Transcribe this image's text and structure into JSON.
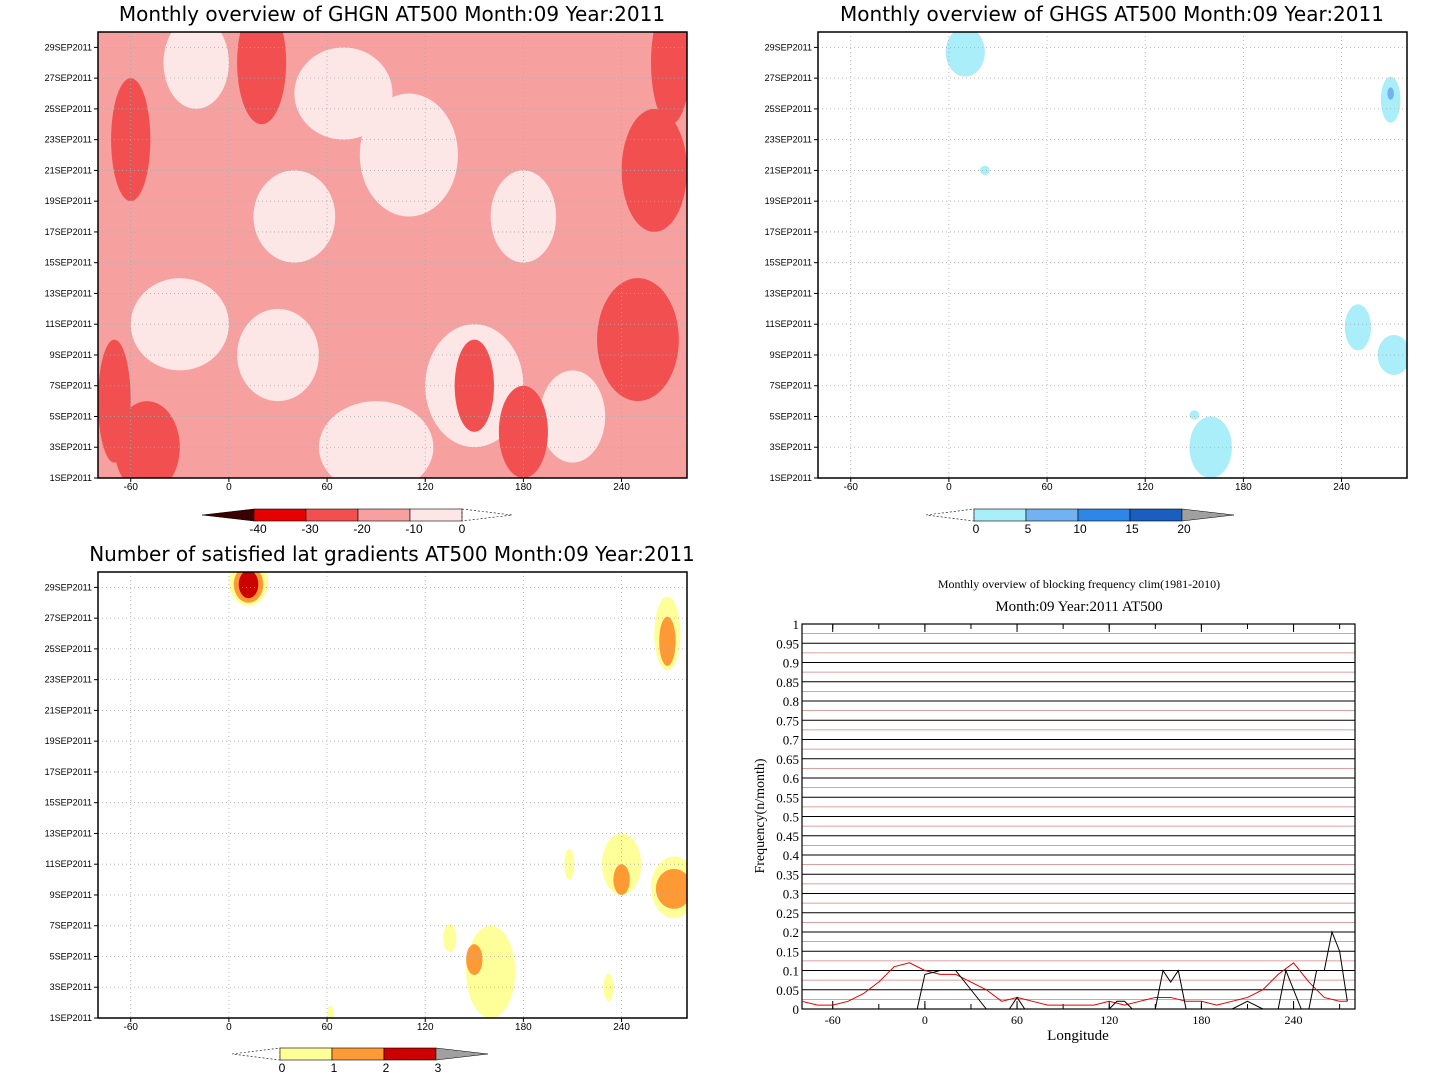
{
  "chart_data": [
    {
      "type": "heatmap",
      "title": "Monthly overview of GHGN AT500 Month:09 Year:2011",
      "x_ticks": [
        -60,
        0,
        60,
        120,
        180,
        240
      ],
      "x_range": [
        -80,
        280
      ],
      "y_ticks": [
        "1SEP2011",
        "3SEP2011",
        "5SEP2011",
        "7SEP2011",
        "9SEP2011",
        "11SEP2011",
        "13SEP2011",
        "15SEP2011",
        "17SEP2011",
        "19SEP2011",
        "21SEP2011",
        "23SEP2011",
        "25SEP2011",
        "27SEP2011",
        "29SEP2011"
      ],
      "y_range": [
        1,
        30
      ],
      "colorbar": {
        "labels": [
          "-40",
          "-30",
          "-20",
          "-10",
          "0"
        ],
        "colors": [
          "#6b0000",
          "#e60000",
          "#f25050",
          "#f7a0a0",
          "#fde6e6"
        ],
        "extend_low_color": "#3a0000"
      },
      "regions": [
        {
          "level": "-20",
          "color": "#f7a0a0",
          "blobs": [
            [
              -50,
              26,
              25,
              5
            ],
            [
              20,
              20,
              35,
              4
            ],
            [
              100,
              24,
              50,
              4
            ],
            [
              160,
              14,
              40,
              4
            ],
            [
              -40,
              5,
              40,
              4
            ],
            [
              60,
              8,
              40,
              3
            ],
            [
              200,
              24,
              30,
              4
            ],
            [
              250,
              17,
              20,
              4
            ],
            [
              -30,
              14,
              35,
              3
            ],
            [
              120,
              11,
              40,
              3
            ]
          ]
        },
        {
          "level": "-10",
          "color": "#fde6e6",
          "blobs": [
            [
              -20,
              28,
              20,
              3
            ],
            [
              70,
              26,
              30,
              3
            ],
            [
              40,
              18,
              25,
              3
            ],
            [
              110,
              22,
              30,
              4
            ],
            [
              180,
              18,
              20,
              3
            ],
            [
              -30,
              11,
              30,
              3
            ],
            [
              30,
              9,
              25,
              3
            ],
            [
              150,
              7,
              30,
              4
            ],
            [
              90,
              3,
              35,
              3
            ],
            [
              210,
              5,
              20,
              3
            ]
          ]
        },
        {
          "level": "-30",
          "color": "#f25050",
          "blobs": [
            [
              -60,
              23,
              12,
              4
            ],
            [
              20,
              28,
              15,
              4
            ],
            [
              260,
              21,
              20,
              4
            ],
            [
              -70,
              6,
              10,
              4
            ],
            [
              -50,
              3,
              20,
              3
            ],
            [
              150,
              7,
              12,
              3
            ],
            [
              250,
              10,
              25,
              4
            ],
            [
              270,
              28,
              12,
              4
            ],
            [
              180,
              4,
              15,
              3
            ]
          ]
        }
      ]
    },
    {
      "type": "heatmap",
      "title": "Monthly overview of GHGS AT500 Month:09 Year:2011",
      "x_ticks": [
        -60,
        0,
        60,
        120,
        180,
        240
      ],
      "x_range": [
        -80,
        280
      ],
      "y_ticks": [
        "1SEP2011",
        "3SEP2011",
        "5SEP2011",
        "7SEP2011",
        "9SEP2011",
        "11SEP2011",
        "13SEP2011",
        "15SEP2011",
        "17SEP2011",
        "19SEP2011",
        "21SEP2011",
        "23SEP2011",
        "25SEP2011",
        "27SEP2011",
        "29SEP2011"
      ],
      "y_range": [
        1,
        30
      ],
      "colorbar": {
        "labels": [
          "0",
          "5",
          "10",
          "15",
          "20"
        ],
        "colors": [
          "#aaeefa",
          "#73b2f0",
          "#2e87e8",
          "#1a5fc0"
        ],
        "extend_high_color": "#a0a0a0"
      },
      "regions": [
        {
          "level": "5",
          "color": "#aaeefa",
          "blobs": [
            [
              10,
              28.7,
              12,
              1.6
            ],
            [
              22,
              21,
              3,
              0.3
            ],
            [
              270,
              25.6,
              6,
              1.5
            ],
            [
              250,
              10.8,
              8,
              1.5
            ],
            [
              272,
              9,
              10,
              1.3
            ],
            [
              160,
              3,
              13,
              2
            ],
            [
              150,
              5.1,
              3,
              0.3
            ]
          ]
        },
        {
          "level": "10",
          "color": "#73b2f0",
          "blobs": [
            [
              270,
              26,
              2,
              0.4
            ]
          ]
        }
      ]
    },
    {
      "type": "heatmap",
      "title": "Number of satisfied lat gradients AT500 Month:09 Year:2011",
      "x_ticks": [
        -60,
        0,
        60,
        120,
        180,
        240
      ],
      "x_range": [
        -80,
        280
      ],
      "y_ticks": [
        "1SEP2011",
        "3SEP2011",
        "5SEP2011",
        "7SEP2011",
        "9SEP2011",
        "11SEP2011",
        "13SEP2011",
        "15SEP2011",
        "17SEP2011",
        "19SEP2011",
        "21SEP2011",
        "23SEP2011",
        "25SEP2011",
        "27SEP2011",
        "29SEP2011"
      ],
      "y_range": [
        1,
        30
      ],
      "colorbar": {
        "labels": [
          "0",
          "1",
          "2",
          "3"
        ],
        "colors": [
          "#ffff99",
          "#ff9933",
          "#cc0000"
        ],
        "extend_high_color": "#a0a0a0"
      },
      "regions": [
        {
          "level": "1",
          "color": "#ffff99",
          "blobs": [
            [
              12,
              29.4,
              12,
              1.6
            ],
            [
              268,
              26,
              8,
              2.4
            ],
            [
              240,
              11,
              12,
              2
            ],
            [
              272,
              9.5,
              14,
              2
            ],
            [
              160,
              4,
              15,
              3
            ],
            [
              135,
              6.2,
              4,
              0.9
            ],
            [
              208,
              11,
              3,
              1
            ],
            [
              232,
              3,
              3,
              0.9
            ],
            [
              62,
              1.3,
              2,
              0.5
            ]
          ]
        },
        {
          "level": "2",
          "color": "#ff9933",
          "blobs": [
            [
              12,
              29.2,
              9,
              1.2
            ],
            [
              268,
              25.5,
              5,
              1.6
            ],
            [
              240,
              10,
              5,
              1
            ],
            [
              272,
              9.4,
              11,
              1.3
            ],
            [
              150,
              4.8,
              5,
              1
            ]
          ]
        },
        {
          "level": "3",
          "color": "#cc0000",
          "blobs": [
            [
              12,
              29.2,
              6,
              0.9
            ]
          ]
        }
      ]
    },
    {
      "type": "line",
      "title": "Monthly overview of blocking frequency clim(1981-2010)",
      "subtitle": "Month:09 Year:2011  AT500",
      "xlabel": "Longitude",
      "ylabel": "Frequency(n/month)",
      "x_ticks": [
        -60,
        0,
        60,
        120,
        180,
        240
      ],
      "xlim": [
        -80,
        280
      ],
      "ylim": [
        0,
        1
      ],
      "y_ticks": [
        "0",
        "0.05",
        "0.1",
        "0.15",
        "0.2",
        "0.25",
        "0.3",
        "0.35",
        "0.4",
        "0.45",
        "0.5",
        "0.55",
        "0.6",
        "0.65",
        "0.7",
        "0.75",
        "0.8",
        "0.85",
        "0.9",
        "0.95",
        "1"
      ],
      "grid": true,
      "series": [
        {
          "color": "#e00000",
          "x": [
            -80,
            -70,
            -60,
            -50,
            -40,
            -30,
            -20,
            -10,
            0,
            10,
            20,
            30,
            40,
            50,
            60,
            70,
            80,
            90,
            100,
            110,
            120,
            130,
            140,
            150,
            160,
            170,
            180,
            190,
            200,
            210,
            220,
            230,
            240,
            250,
            260,
            270,
            275
          ],
          "y": [
            0.02,
            0.01,
            0.01,
            0.02,
            0.04,
            0.07,
            0.11,
            0.12,
            0.1,
            0.09,
            0.09,
            0.07,
            0.05,
            0.02,
            0.03,
            0.02,
            0.01,
            0.01,
            0.01,
            0.01,
            0.02,
            0.01,
            0.02,
            0.03,
            0.03,
            0.02,
            0.02,
            0.01,
            0.02,
            0.03,
            0.05,
            0.09,
            0.12,
            0.07,
            0.03,
            0.02,
            0.02
          ]
        },
        {
          "color": "#000000",
          "x": [
            -80,
            -15,
            -5,
            0,
            10,
            20,
            30,
            40,
            55,
            60,
            65,
            70,
            120,
            125,
            130,
            135,
            150,
            155,
            160,
            165,
            170,
            180,
            200,
            210,
            220,
            230,
            235,
            245,
            250,
            255,
            260,
            265,
            270,
            275
          ],
          "y": [
            0,
            0,
            0,
            0.09,
            0.1,
            0.1,
            0.05,
            0,
            0,
            0.03,
            0,
            0,
            0,
            0.02,
            0.02,
            0,
            0,
            0.1,
            0.07,
            0.1,
            0,
            0,
            0,
            0.02,
            0,
            0,
            0.1,
            0,
            0,
            0.1,
            0.1,
            0.2,
            0.15,
            0.02
          ]
        }
      ]
    }
  ]
}
